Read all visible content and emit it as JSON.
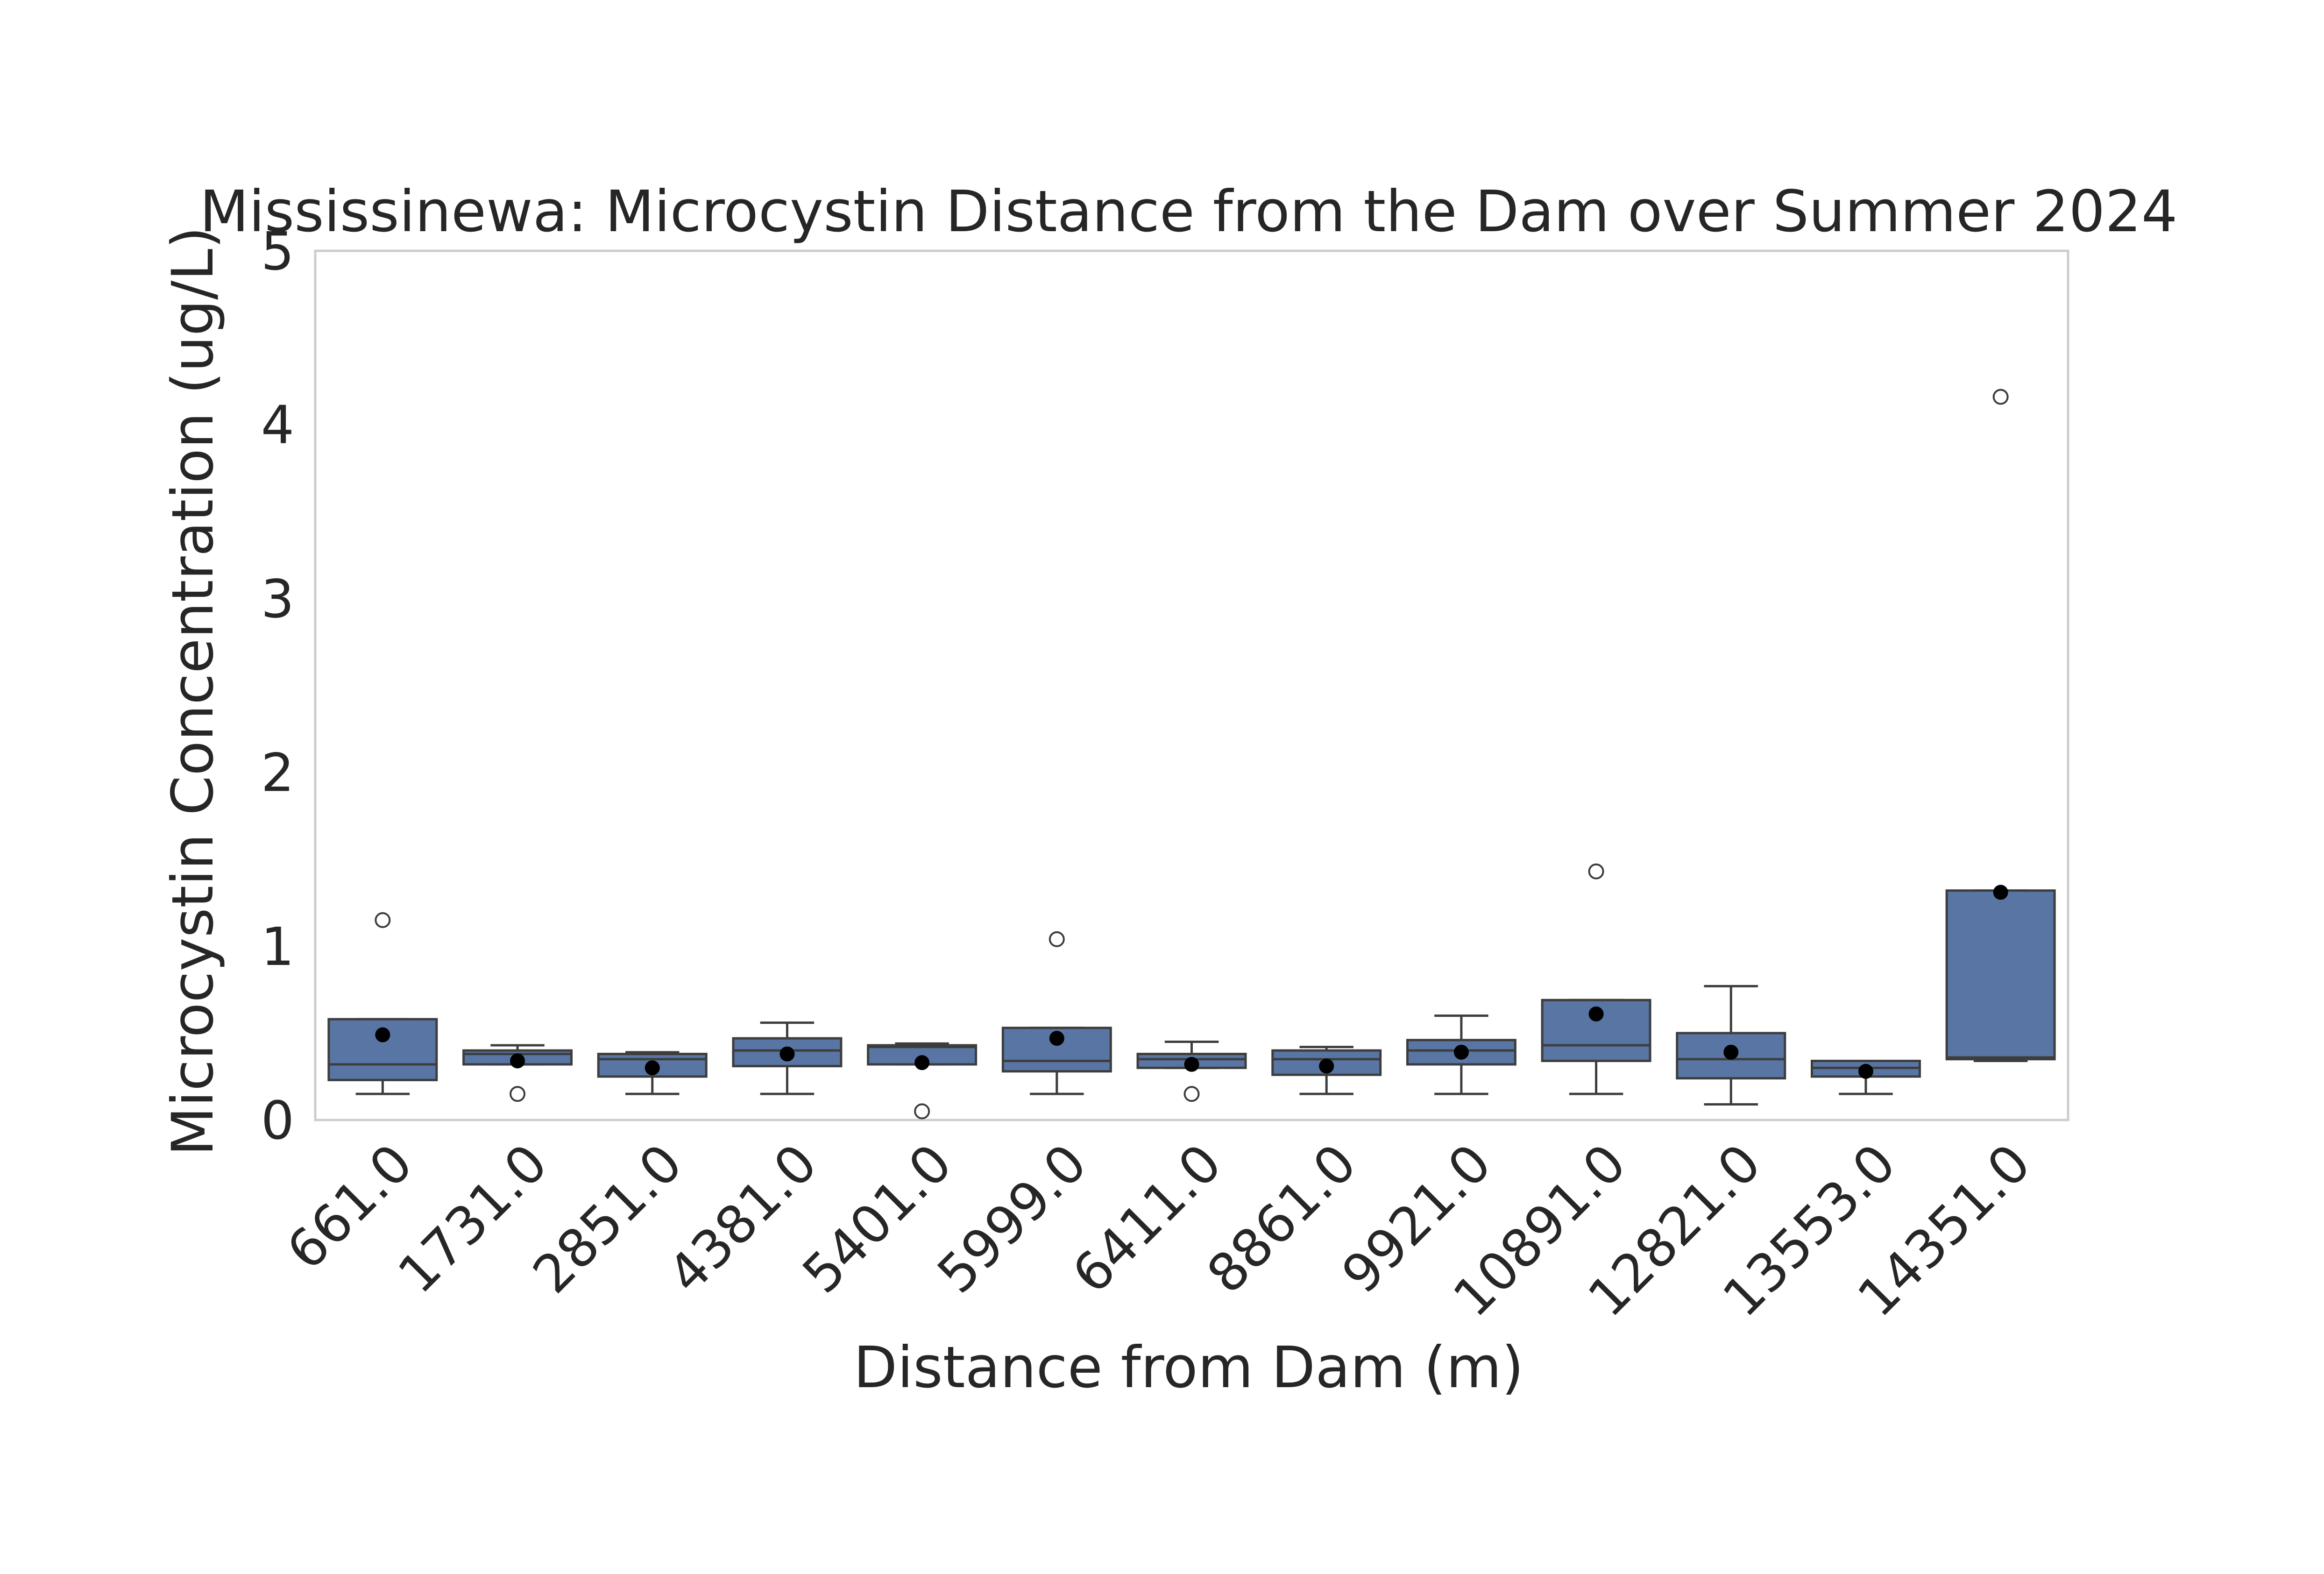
{
  "chart_data": {
    "type": "box",
    "title": "Mississinewa: Microcystin Distance from the Dam over Summer 2024",
    "xlabel": "Distance from Dam (m)",
    "ylabel": "Microcystin Concentration (ug/L)",
    "ylim": [
      0,
      5
    ],
    "yticks": [
      "0",
      "1",
      "2",
      "3",
      "4",
      "5"
    ],
    "grid": false,
    "box_color": "#5875a4",
    "mean_marker_color": "#000000",
    "categories": [
      "661.0",
      "1731.0",
      "2851.0",
      "4381.0",
      "5401.0",
      "5999.0",
      "6411.0",
      "8861.0",
      "9921.0",
      "10891.0",
      "12821.0",
      "13553.0",
      "14351.0"
    ],
    "boxes": [
      {
        "whislo": 0.15,
        "q1": 0.23,
        "med": 0.32,
        "q3": 0.58,
        "whishi": 0.58,
        "mean": 0.49,
        "fliers": [
          1.15
        ]
      },
      {
        "whislo": 0.32,
        "q1": 0.32,
        "med": 0.38,
        "q3": 0.4,
        "whishi": 0.43,
        "mean": 0.34,
        "fliers": [
          0.15
        ]
      },
      {
        "whislo": 0.15,
        "q1": 0.25,
        "med": 0.35,
        "q3": 0.38,
        "whishi": 0.39,
        "mean": 0.3,
        "fliers": []
      },
      {
        "whislo": 0.15,
        "q1": 0.31,
        "med": 0.4,
        "q3": 0.47,
        "whishi": 0.56,
        "mean": 0.38,
        "fliers": []
      },
      {
        "whislo": 0.32,
        "q1": 0.32,
        "med": 0.42,
        "q3": 0.43,
        "whishi": 0.44,
        "mean": 0.33,
        "fliers": [
          0.05
        ]
      },
      {
        "whislo": 0.15,
        "q1": 0.28,
        "med": 0.34,
        "q3": 0.53,
        "whishi": 0.53,
        "mean": 0.47,
        "fliers": [
          1.04
        ]
      },
      {
        "whislo": 0.3,
        "q1": 0.3,
        "med": 0.35,
        "q3": 0.38,
        "whishi": 0.45,
        "mean": 0.32,
        "fliers": [
          0.15
        ]
      },
      {
        "whislo": 0.15,
        "q1": 0.26,
        "med": 0.35,
        "q3": 0.4,
        "whishi": 0.42,
        "mean": 0.31,
        "fliers": []
      },
      {
        "whislo": 0.15,
        "q1": 0.32,
        "med": 0.4,
        "q3": 0.46,
        "whishi": 0.6,
        "mean": 0.39,
        "fliers": []
      },
      {
        "whislo": 0.15,
        "q1": 0.34,
        "med": 0.43,
        "q3": 0.69,
        "whishi": 0.69,
        "mean": 0.61,
        "fliers": [
          1.43
        ]
      },
      {
        "whislo": 0.09,
        "q1": 0.24,
        "med": 0.35,
        "q3": 0.5,
        "whishi": 0.77,
        "mean": 0.39,
        "fliers": []
      },
      {
        "whislo": 0.15,
        "q1": 0.25,
        "med": 0.3,
        "q3": 0.34,
        "whishi": 0.34,
        "mean": 0.28,
        "fliers": []
      },
      {
        "whislo": 0.34,
        "q1": 0.35,
        "med": 0.36,
        "q3": 1.32,
        "whishi": 1.32,
        "mean": 1.31,
        "fliers": [
          4.16
        ]
      }
    ]
  }
}
